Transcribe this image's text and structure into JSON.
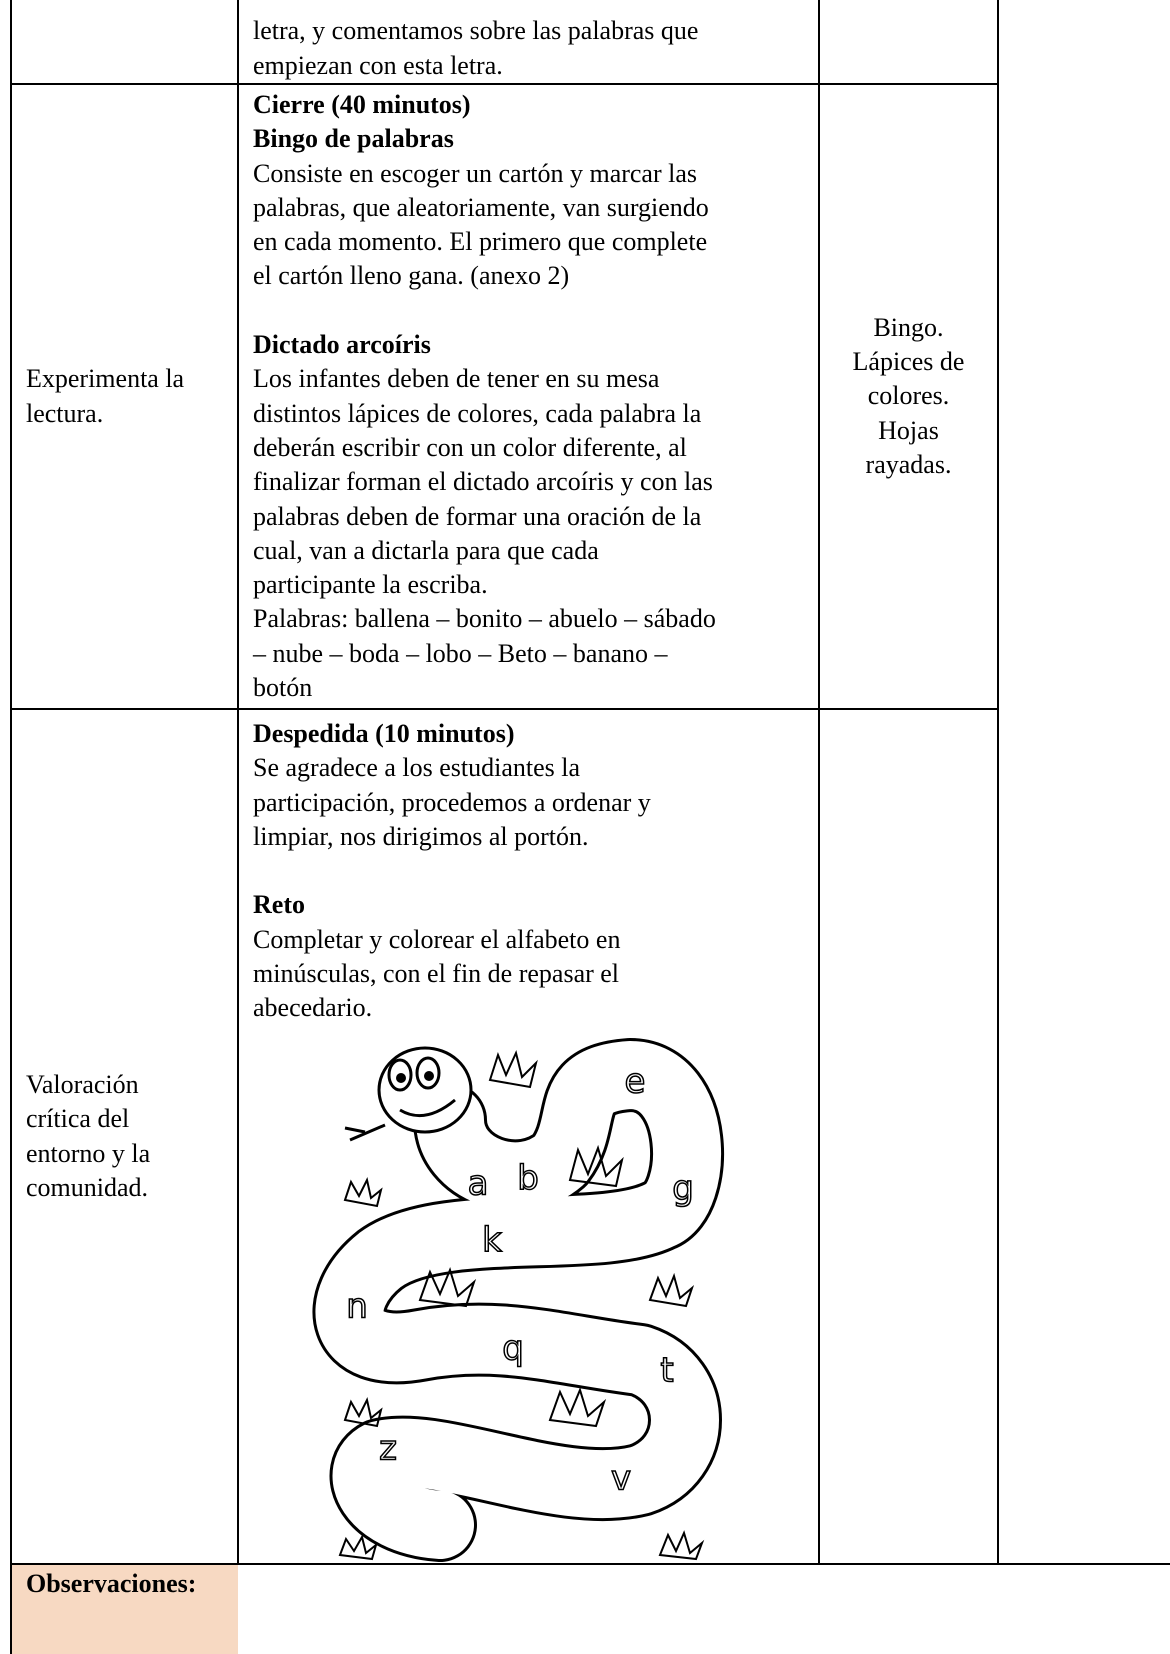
{
  "table": {
    "rows": [
      {
        "activity": [
          {
            "lines": [
              "letra, y comentamos sobre las palabras que",
              "empiezan con esta letra."
            ]
          }
        ]
      },
      {
        "competence": [
          "Experimenta la",
          "lectura."
        ],
        "activity": [
          {
            "heading": "Cierre (40 minutos)"
          },
          {
            "heading": "Bingo de palabras",
            "lines": [
              "Consiste en escoger un cartón y marcar las",
              "palabras, que aleatoriamente, van surgiendo",
              "en cada momento. El primero que complete",
              "el cartón lleno gana. (anexo 2)"
            ]
          },
          {
            "heading": "Dictado arcoíris",
            "lines": [
              "Los infantes deben de tener en su mesa",
              "distintos lápices de colores, cada palabra la",
              "deberán escribir con un color diferente, al",
              "finalizar forman el dictado arcoíris y con las",
              "palabras deben de formar una oración de la",
              "cual, van a dictarla para que cada",
              "participante la escriba.",
              "Palabras: ballena – bonito – abuelo – sábado",
              "– nube – boda – lobo – Beto – banano –",
              "botón"
            ]
          }
        ],
        "resources": [
          "Bingo.",
          "Lápices de",
          "colores.",
          "Hojas",
          "rayadas."
        ]
      },
      {
        "competence": [
          "Valoración",
          "crítica del",
          "entorno y la",
          "comunidad."
        ],
        "activity": [
          {
            "heading": "Despedida (10 minutos)",
            "lines": [
              "Se agradece a los estudiantes la",
              "participación, procedemos a ordenar y",
              "limpiar, nos dirigimos al portón."
            ]
          },
          {
            "heading": "Reto",
            "lines": [
              "Completar y colorear el alfabeto en",
              "minúsculas, con el fin de repasar el",
              "abecedario."
            ]
          }
        ],
        "image_letters": [
          "e",
          "a",
          "b",
          "g",
          "k",
          "n",
          "q",
          "t",
          "z",
          "v"
        ]
      }
    ],
    "observations_label": "Observaciones:"
  }
}
